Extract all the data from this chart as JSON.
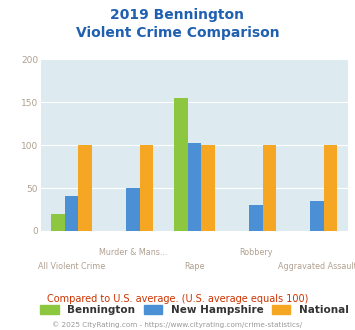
{
  "title_line1": "2019 Bennington",
  "title_line2": "Violent Crime Comparison",
  "groups": [
    {
      "label": "All Violent Crime",
      "Bennington": 20,
      "New Hampshire": 41,
      "National": 100,
      "label_row": "bottom"
    },
    {
      "label": "Murder & Mans...",
      "Bennington": 0,
      "New Hampshire": 50,
      "National": 100,
      "label_row": "top"
    },
    {
      "label": "Rape",
      "Bennington": 155,
      "New Hampshire": 103,
      "National": 100,
      "label_row": "bottom"
    },
    {
      "label": "Robbery",
      "Bennington": 0,
      "New Hampshire": 30,
      "National": 100,
      "label_row": "top"
    },
    {
      "label": "Aggravated Assault",
      "Bennington": 0,
      "New Hampshire": 35,
      "National": 100,
      "label_row": "bottom"
    }
  ],
  "series": [
    "Bennington",
    "New Hampshire",
    "National"
  ],
  "colors": {
    "Bennington": "#8dc63f",
    "New Hampshire": "#4b8fd5",
    "National": "#f5a623"
  },
  "ylim": [
    0,
    200
  ],
  "yticks": [
    0,
    50,
    100,
    150,
    200
  ],
  "background_color": "#ddeaf0",
  "title_color": "#2060b0",
  "axis_label_color": "#b0a090",
  "legend_label_color": "#333333",
  "note_text": "Compared to U.S. average. (U.S. average equals 100)",
  "note_color": "#cc3300",
  "footer_text": "© 2025 CityRating.com - https://www.cityrating.com/crime-statistics/",
  "footer_color": "#999999",
  "bar_width": 0.22,
  "grid_color": "#ffffff"
}
